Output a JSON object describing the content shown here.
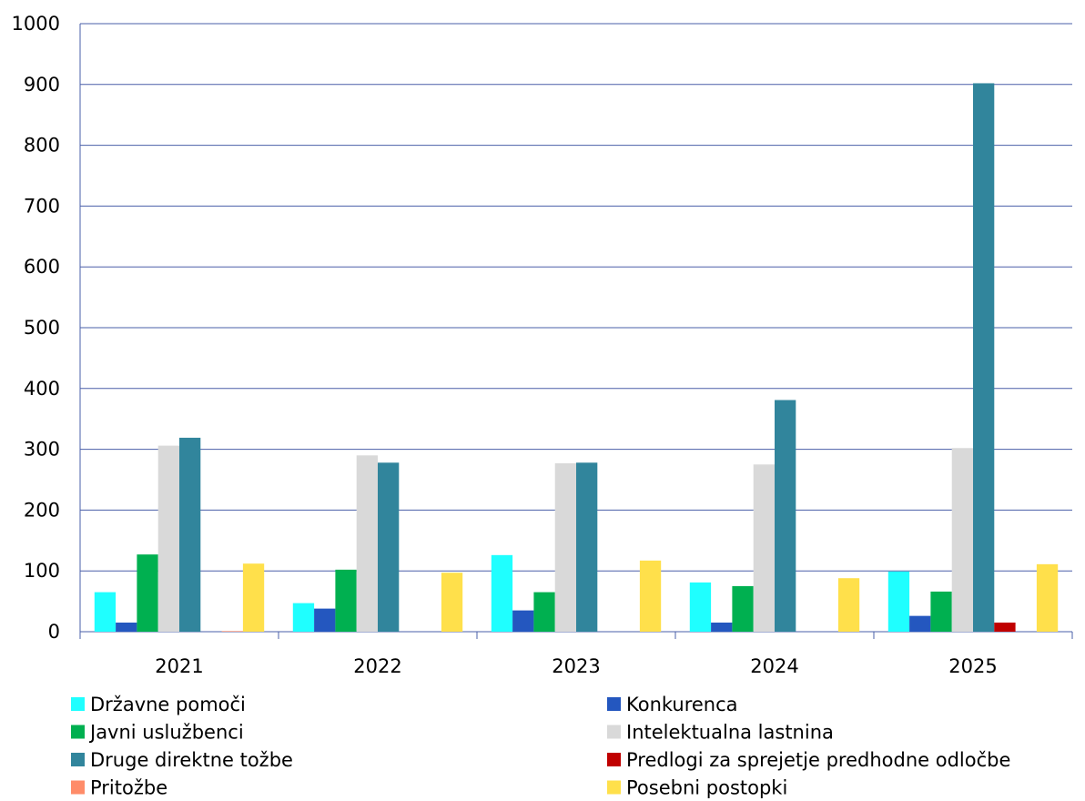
{
  "chart_data": {
    "type": "bar",
    "categories": [
      "2021",
      "2022",
      "2023",
      "2024",
      "2025"
    ],
    "ylim": [
      0,
      1000
    ],
    "yticks": [
      0,
      100,
      200,
      300,
      400,
      500,
      600,
      700,
      800,
      900,
      1000
    ],
    "grid": true,
    "legend_position": "bottom",
    "title": "",
    "xlabel": "",
    "ylabel": "",
    "series": [
      {
        "name": "Državne pomoči",
        "color": "#1FFFFF",
        "values": [
          65,
          47,
          126,
          81,
          99
        ]
      },
      {
        "name": "Konkurenca",
        "color": "#2457BF",
        "values": [
          15,
          38,
          35,
          15,
          26
        ]
      },
      {
        "name": "Javni uslužbenci",
        "color": "#00B050",
        "values": [
          127,
          102,
          65,
          75,
          66
        ]
      },
      {
        "name": "Intelektualna lastnina",
        "color": "#D9D9D9",
        "values": [
          306,
          290,
          277,
          275,
          302
        ]
      },
      {
        "name": "Druge direktne tožbe",
        "color": "#31859C",
        "values": [
          319,
          278,
          278,
          381,
          902
        ]
      },
      {
        "name": "Predlogi za sprejetje predhodne odločbe",
        "color": "#C00000",
        "values": [
          0,
          0,
          0,
          0,
          15
        ]
      },
      {
        "name": "Pritožbe",
        "color": "#FF8C69",
        "values": [
          1,
          0,
          0,
          0,
          0
        ]
      },
      {
        "name": "Posebni postopki",
        "color": "#FFE04B",
        "values": [
          112,
          97,
          117,
          88,
          111
        ]
      }
    ]
  }
}
